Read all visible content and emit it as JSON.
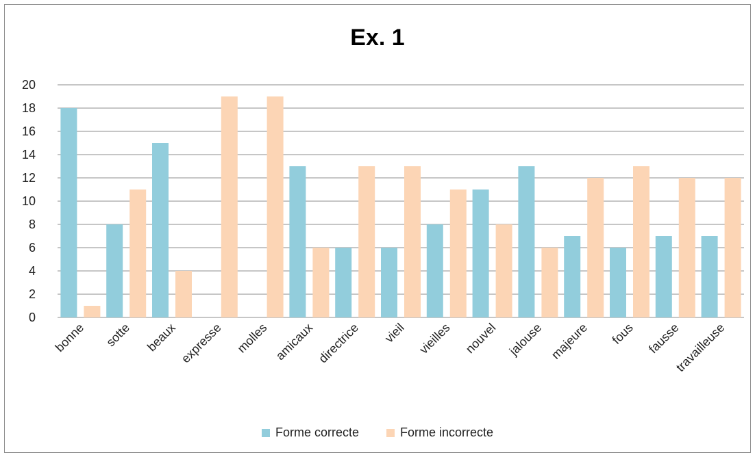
{
  "chart_data": {
    "type": "bar",
    "title": "Ex. 1",
    "xlabel": "",
    "ylabel": "",
    "categories": [
      "bonne",
      "sotte",
      "beaux",
      "expresse",
      "molles",
      "amicaux",
      "directrice",
      "vieil",
      "vieilles",
      "nouvel",
      "jalouse",
      "majeure",
      "fous",
      "fausse",
      "travailleuse"
    ],
    "series": [
      {
        "name": "Forme correcte",
        "color": "#92cddc",
        "values": [
          18,
          8,
          15,
          0,
          0,
          13,
          6,
          6,
          8,
          11,
          13,
          7,
          6,
          7,
          7
        ]
      },
      {
        "name": "Forme incorrecte",
        "color": "#fcd5b5",
        "values": [
          1,
          11,
          4,
          19,
          19,
          6,
          13,
          13,
          11,
          8,
          6,
          12,
          13,
          12,
          12
        ]
      }
    ],
    "ylim": [
      0,
      20
    ],
    "yticks": [
      0,
      2,
      4,
      6,
      8,
      10,
      12,
      14,
      16,
      18,
      20
    ],
    "grid": true,
    "legend_position": "bottom"
  }
}
